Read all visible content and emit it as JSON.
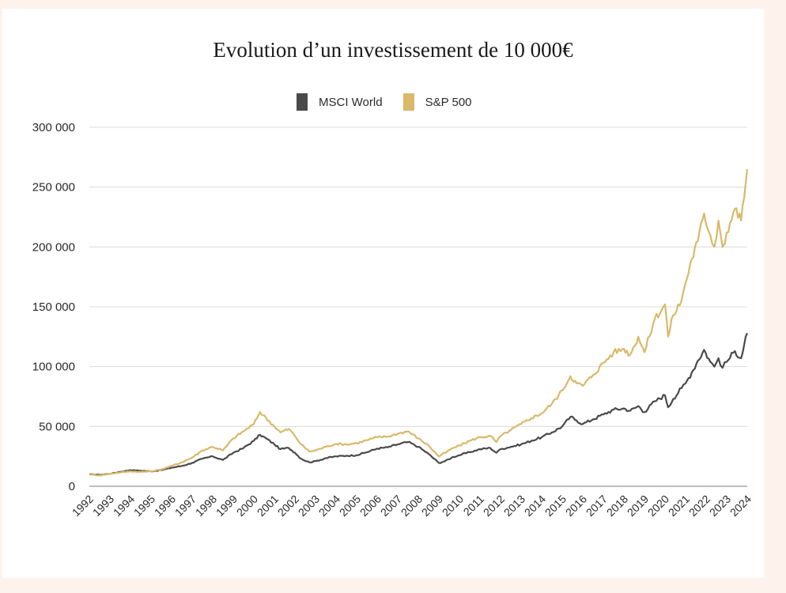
{
  "chart_data": {
    "type": "line",
    "title": "Evolution d’un investissement de 10 000€",
    "xlabel": "",
    "ylabel": "",
    "ylim": [
      0,
      300000
    ],
    "xlim": [
      1992,
      2024
    ],
    "grid": true,
    "legend_position": "top-center",
    "yticks": [
      0,
      50000,
      100000,
      150000,
      200000,
      250000,
      300000
    ],
    "ytick_labels": [
      "0",
      "50 000",
      "100 000",
      "150 000",
      "200 000",
      "250 000",
      "300 000"
    ],
    "xtick_labels": [
      "1992",
      "1993",
      "1994",
      "1995",
      "1996",
      "1997",
      "1998",
      "1999",
      "2000",
      "2001",
      "2002",
      "2003",
      "2004",
      "2005",
      "2006",
      "2007",
      "2008",
      "2009",
      "2010",
      "2011",
      "2012",
      "2013",
      "2014",
      "2015",
      "2016",
      "2017",
      "2018",
      "2019",
      "2020",
      "2021",
      "2022",
      "2023",
      "2024"
    ],
    "series": [
      {
        "name": "MSCI World",
        "color": "#4a4a4a",
        "points": [
          [
            1992.0,
            10000
          ],
          [
            1992.5,
            9500
          ],
          [
            1993.0,
            10500
          ],
          [
            1993.5,
            12000
          ],
          [
            1994.0,
            13500
          ],
          [
            1994.5,
            13000
          ],
          [
            1995.0,
            12500
          ],
          [
            1995.5,
            13500
          ],
          [
            1996.0,
            15500
          ],
          [
            1996.5,
            17000
          ],
          [
            1997.0,
            19500
          ],
          [
            1997.5,
            23000
          ],
          [
            1998.0,
            25000
          ],
          [
            1998.5,
            22000
          ],
          [
            1999.0,
            28000
          ],
          [
            1999.5,
            32000
          ],
          [
            2000.0,
            38000
          ],
          [
            2000.3,
            43000
          ],
          [
            2000.6,
            40000
          ],
          [
            2001.0,
            35000
          ],
          [
            2001.3,
            31000
          ],
          [
            2001.7,
            32000
          ],
          [
            2002.0,
            28000
          ],
          [
            2002.3,
            23000
          ],
          [
            2002.7,
            20000
          ],
          [
            2003.0,
            21000
          ],
          [
            2003.5,
            23500
          ],
          [
            2004.0,
            25000
          ],
          [
            2004.5,
            25500
          ],
          [
            2005.0,
            26000
          ],
          [
            2005.5,
            28500
          ],
          [
            2006.0,
            31500
          ],
          [
            2006.5,
            32500
          ],
          [
            2007.0,
            35000
          ],
          [
            2007.5,
            37000
          ],
          [
            2008.0,
            33000
          ],
          [
            2008.5,
            27000
          ],
          [
            2009.0,
            19500
          ],
          [
            2009.3,
            21000
          ],
          [
            2009.7,
            24500
          ],
          [
            2010.0,
            26000
          ],
          [
            2010.5,
            28500
          ],
          [
            2011.0,
            31000
          ],
          [
            2011.5,
            32000
          ],
          [
            2011.8,
            28000
          ],
          [
            2012.0,
            31000
          ],
          [
            2012.5,
            33000
          ],
          [
            2013.0,
            35000
          ],
          [
            2013.5,
            38000
          ],
          [
            2014.0,
            41000
          ],
          [
            2014.5,
            45000
          ],
          [
            2015.0,
            50000
          ],
          [
            2015.4,
            58000
          ],
          [
            2015.7,
            55000
          ],
          [
            2016.0,
            52000
          ],
          [
            2016.5,
            56000
          ],
          [
            2017.0,
            60000
          ],
          [
            2017.5,
            64000
          ],
          [
            2018.0,
            65000
          ],
          [
            2018.3,
            63000
          ],
          [
            2018.7,
            67000
          ],
          [
            2019.0,
            62000
          ],
          [
            2019.5,
            71000
          ],
          [
            2020.0,
            76000
          ],
          [
            2020.15,
            66000
          ],
          [
            2020.4,
            73000
          ],
          [
            2020.8,
            82000
          ],
          [
            2021.0,
            86000
          ],
          [
            2021.3,
            95000
          ],
          [
            2021.6,
            105000
          ],
          [
            2021.9,
            114000
          ],
          [
            2022.2,
            104000
          ],
          [
            2022.4,
            100000
          ],
          [
            2022.6,
            107000
          ],
          [
            2022.8,
            99000
          ],
          [
            2023.0,
            104000
          ],
          [
            2023.4,
            113000
          ],
          [
            2023.7,
            107000
          ],
          [
            2024.0,
            128000
          ]
        ]
      },
      {
        "name": "S&P 500",
        "color": "#d9b96a",
        "points": [
          [
            1992.0,
            10000
          ],
          [
            1992.5,
            9000
          ],
          [
            1993.0,
            10500
          ],
          [
            1993.5,
            11500
          ],
          [
            1994.0,
            12500
          ],
          [
            1994.5,
            12000
          ],
          [
            1995.0,
            12500
          ],
          [
            1995.5,
            14000
          ],
          [
            1996.0,
            17000
          ],
          [
            1996.5,
            20000
          ],
          [
            1997.0,
            24000
          ],
          [
            1997.5,
            30000
          ],
          [
            1998.0,
            33000
          ],
          [
            1998.5,
            30000
          ],
          [
            1999.0,
            40000
          ],
          [
            1999.5,
            46000
          ],
          [
            2000.0,
            52000
          ],
          [
            2000.3,
            62000
          ],
          [
            2000.6,
            57000
          ],
          [
            2001.0,
            50000
          ],
          [
            2001.3,
            45000
          ],
          [
            2001.7,
            48000
          ],
          [
            2002.0,
            42000
          ],
          [
            2002.3,
            35000
          ],
          [
            2002.7,
            29000
          ],
          [
            2003.0,
            30000
          ],
          [
            2003.5,
            33000
          ],
          [
            2004.0,
            35500
          ],
          [
            2004.5,
            35000
          ],
          [
            2005.0,
            36000
          ],
          [
            2005.5,
            38500
          ],
          [
            2006.0,
            41000
          ],
          [
            2006.5,
            41500
          ],
          [
            2007.0,
            44000
          ],
          [
            2007.5,
            46000
          ],
          [
            2008.0,
            40000
          ],
          [
            2008.5,
            34000
          ],
          [
            2009.0,
            25000
          ],
          [
            2009.3,
            28000
          ],
          [
            2009.7,
            32000
          ],
          [
            2010.0,
            34000
          ],
          [
            2010.5,
            38000
          ],
          [
            2011.0,
            41000
          ],
          [
            2011.5,
            42000
          ],
          [
            2011.8,
            37000
          ],
          [
            2012.0,
            42000
          ],
          [
            2012.5,
            47000
          ],
          [
            2013.0,
            52000
          ],
          [
            2013.5,
            57000
          ],
          [
            2014.0,
            61000
          ],
          [
            2014.5,
            69000
          ],
          [
            2015.0,
            80000
          ],
          [
            2015.4,
            92000
          ],
          [
            2015.7,
            86000
          ],
          [
            2016.0,
            84000
          ],
          [
            2016.5,
            93000
          ],
          [
            2017.0,
            103000
          ],
          [
            2017.5,
            112000
          ],
          [
            2018.0,
            115000
          ],
          [
            2018.3,
            110000
          ],
          [
            2018.7,
            125000
          ],
          [
            2019.0,
            112000
          ],
          [
            2019.5,
            140000
          ],
          [
            2020.0,
            152000
          ],
          [
            2020.15,
            125000
          ],
          [
            2020.4,
            143000
          ],
          [
            2020.8,
            155000
          ],
          [
            2021.0,
            170000
          ],
          [
            2021.3,
            190000
          ],
          [
            2021.6,
            205000
          ],
          [
            2021.9,
            228000
          ],
          [
            2022.2,
            210000
          ],
          [
            2022.4,
            200000
          ],
          [
            2022.6,
            222000
          ],
          [
            2022.8,
            200000
          ],
          [
            2023.0,
            212000
          ],
          [
            2023.4,
            232000
          ],
          [
            2023.7,
            222000
          ],
          [
            2024.0,
            265000
          ]
        ]
      }
    ]
  }
}
